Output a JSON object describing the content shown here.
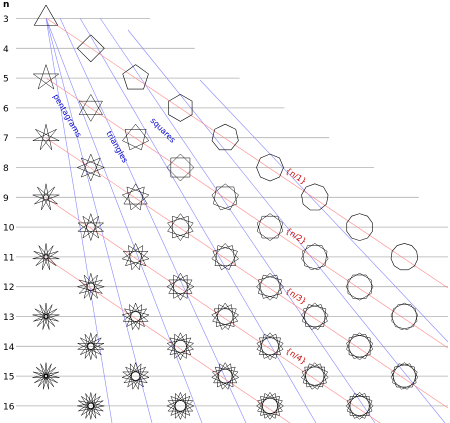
{
  "header": "n",
  "rows": [
    "3",
    "4",
    "5",
    "6",
    "7",
    "8",
    "9",
    "10",
    "11",
    "12",
    "13",
    "14",
    "15",
    "16"
  ],
  "family_labels": [
    "pentagrams",
    "triangles",
    "squares"
  ],
  "density_labels": [
    "{n/1}",
    "{n/2}",
    "{n/3}",
    "{n/4}"
  ],
  "colors": {
    "gridline": "#b0b0b0",
    "blue_guides": "#8888ff",
    "red_guides": "#ff8888",
    "blue_text": "#0000cc",
    "red_text": "#cc0000",
    "shapes": "#000000"
  }
}
